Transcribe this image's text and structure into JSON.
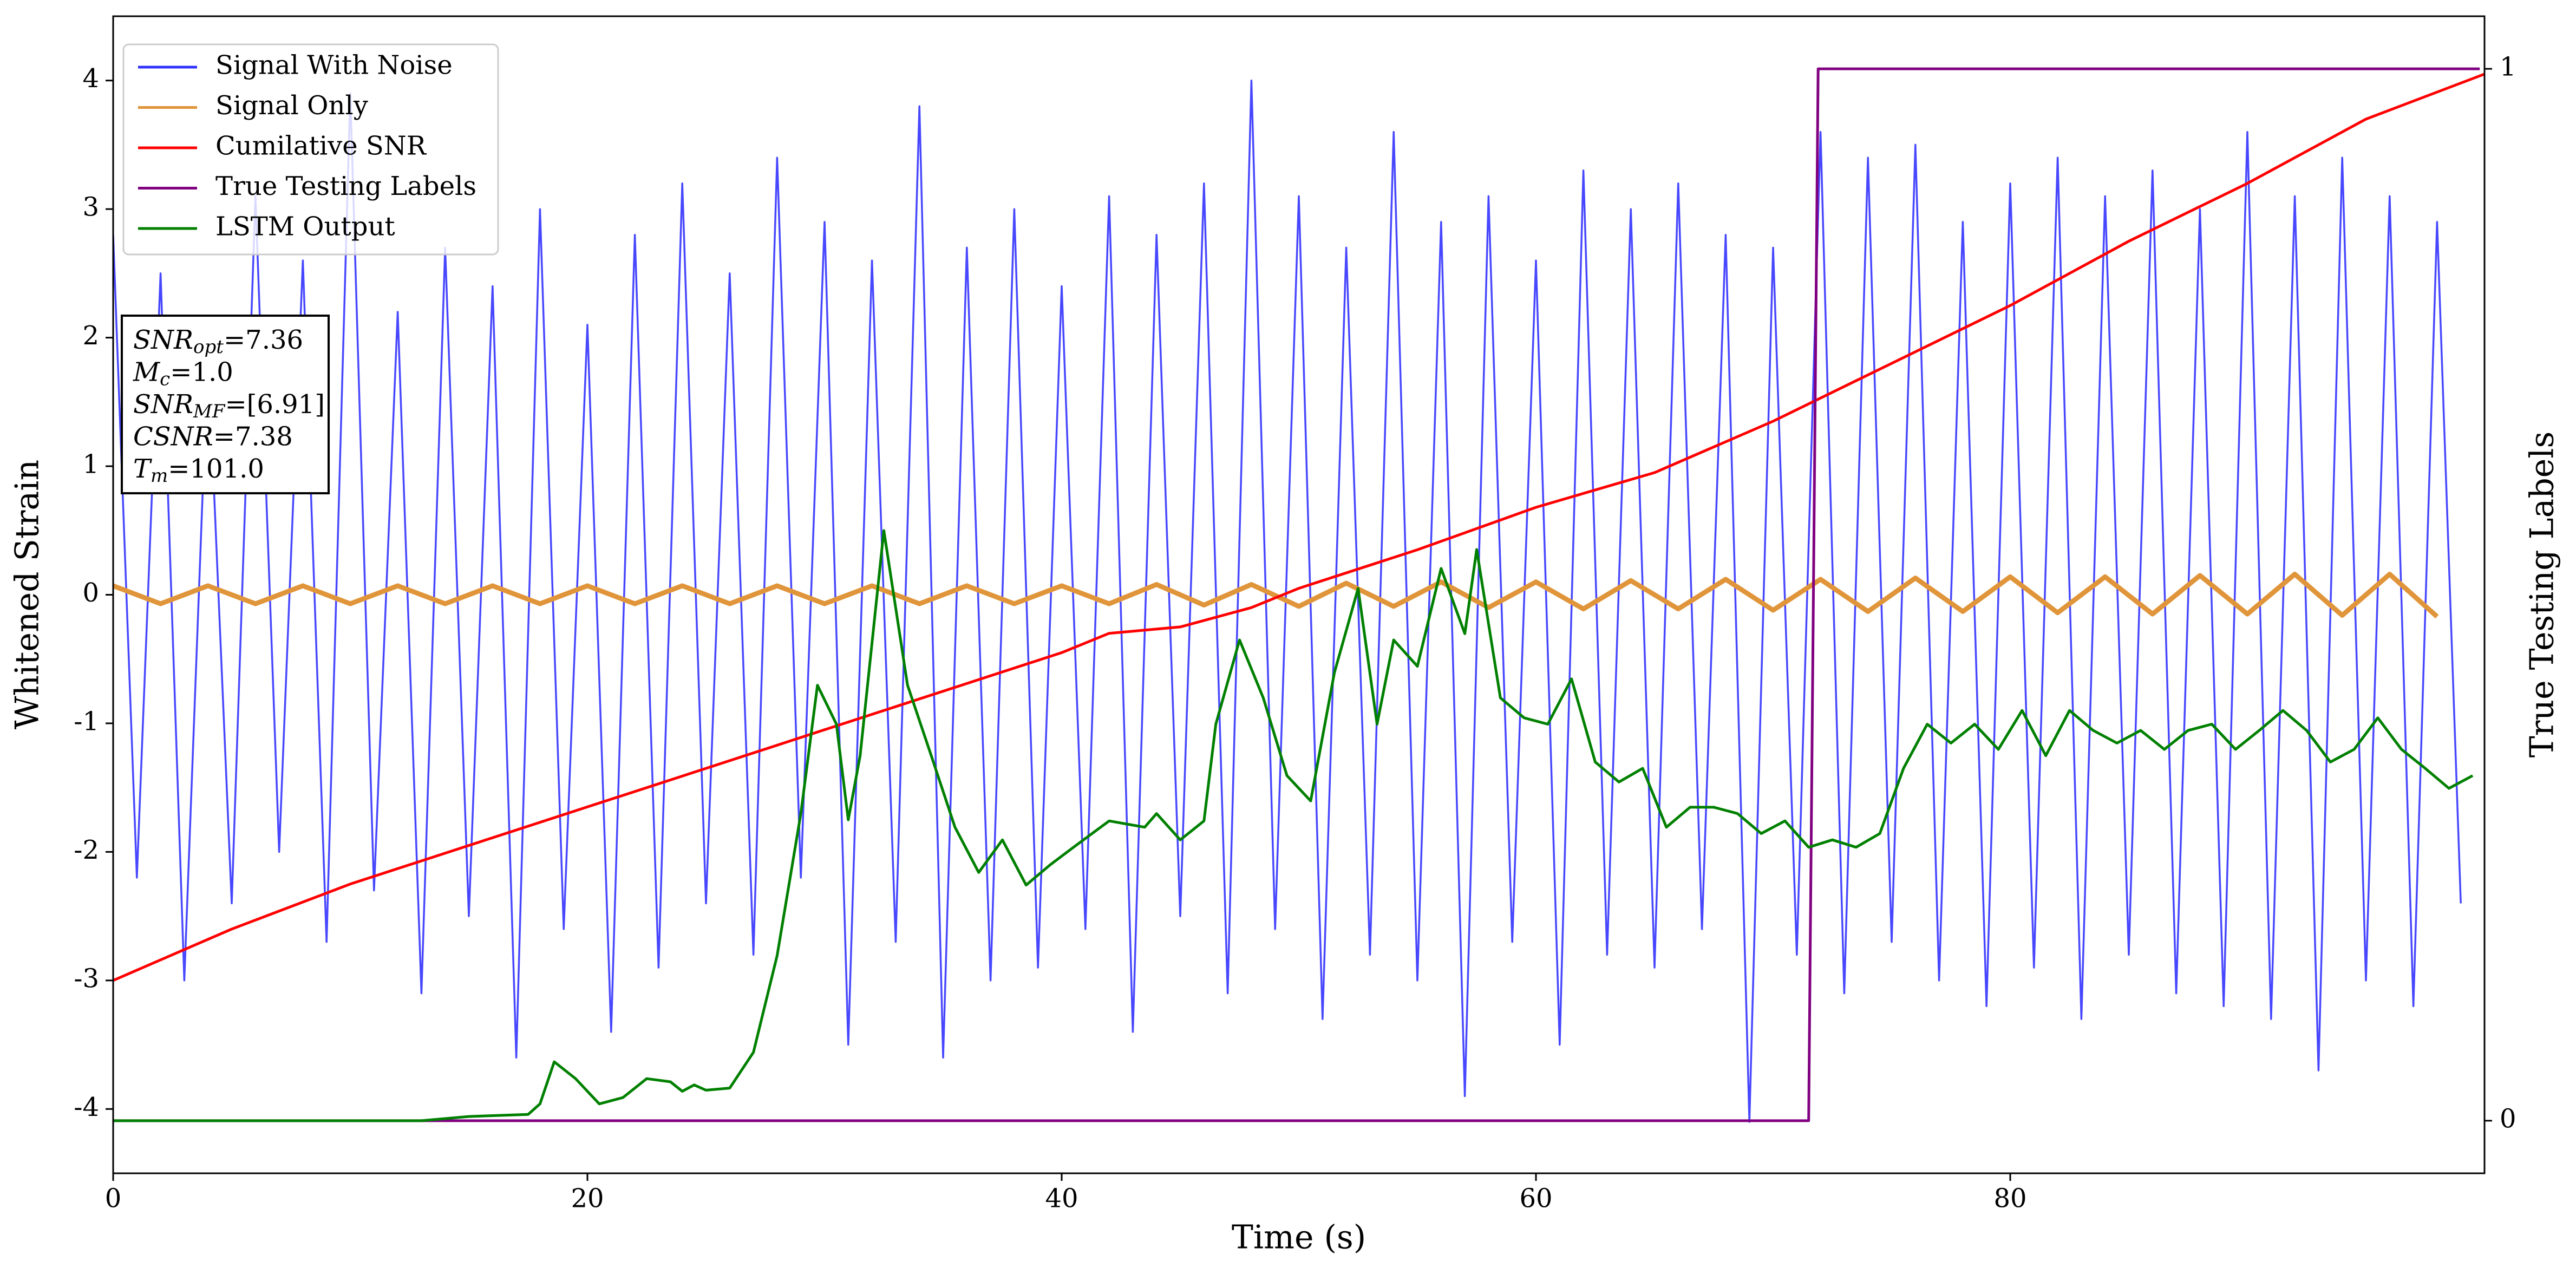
{
  "chart_data": {
    "type": "line",
    "xlabel": "Time (s)",
    "ylabel": "Whitened Strain",
    "y2label": "True Testing Labels",
    "xlim": [
      0,
      100
    ],
    "xticks": [
      0,
      20,
      40,
      60,
      80
    ],
    "ylim": [
      -4.5,
      4.5
    ],
    "yticks": [
      -4,
      -3,
      -2,
      -1,
      0,
      1,
      2,
      3,
      4
    ],
    "y2lim": [
      -0.05,
      1.05
    ],
    "y2ticks": [
      0,
      1
    ],
    "legend": "upper left",
    "annotation": [
      {
        "text": "SNR",
        "sub": "opt",
        "rest": "=7.36"
      },
      {
        "text": "M",
        "sub": "c",
        "rest": "=1.0"
      },
      {
        "text": "SNR",
        "sub": "MF",
        "rest": "=[6.91]"
      },
      {
        "text": "CSNR",
        "rest": "=7.38"
      },
      {
        "text": "T",
        "sub": "m",
        "rest": "=101.0"
      }
    ],
    "series": [
      {
        "name": "Signal With Noise",
        "color": "#3333ff",
        "x": [
          0,
          1,
          2,
          3,
          4,
          5,
          6,
          7,
          8,
          9,
          10,
          11,
          12,
          13,
          14,
          15,
          16,
          17,
          18,
          19,
          20,
          21,
          22,
          23,
          24,
          25,
          26,
          27,
          28,
          29,
          30,
          31,
          32,
          33,
          34,
          35,
          36,
          37,
          38,
          39,
          40,
          41,
          42,
          43,
          44,
          45,
          46,
          47,
          48,
          49,
          50,
          51,
          52,
          53,
          54,
          55,
          56,
          57,
          58,
          59,
          60,
          61,
          62,
          63,
          64,
          65,
          66,
          67,
          68,
          69,
          70,
          71,
          72,
          73,
          74,
          75,
          76,
          77,
          78,
          79,
          80,
          81,
          82,
          83,
          84,
          85,
          86,
          87,
          88,
          89,
          90,
          91,
          92,
          93,
          94,
          95,
          96,
          97,
          98,
          99
        ],
        "values": [
          2.8,
          -2.2,
          2.5,
          -3.0,
          1.9,
          -2.4,
          3.1,
          -2.0,
          2.6,
          -2.7,
          3.9,
          -2.3,
          2.2,
          -3.1,
          2.7,
          -2.5,
          2.4,
          -3.6,
          3.0,
          -2.6,
          2.1,
          -3.4,
          2.8,
          -2.9,
          3.2,
          -2.4,
          2.5,
          -2.8,
          3.4,
          -2.2,
          2.9,
          -3.5,
          2.6,
          -2.7,
          3.8,
          -3.6,
          2.7,
          -3.0,
          3.0,
          -2.9,
          2.4,
          -2.6,
          3.1,
          -3.4,
          2.8,
          -2.5,
          3.2,
          -3.1,
          4.0,
          -2.6,
          3.1,
          -3.3,
          2.7,
          -2.8,
          3.6,
          -3.0,
          2.9,
          -3.9,
          3.1,
          -2.7,
          2.6,
          -3.5,
          3.3,
          -2.8,
          3.0,
          -2.9,
          3.2,
          -2.6,
          2.8,
          -4.1,
          2.7,
          -2.8,
          3.6,
          -3.1,
          3.4,
          -2.7,
          3.5,
          -3.0,
          2.9,
          -3.2,
          3.2,
          -2.9,
          3.4,
          -3.3,
          3.1,
          -2.8,
          3.3,
          -3.1,
          3.0,
          -3.2,
          3.6,
          -3.3,
          3.1,
          -3.7,
          3.4,
          -3.0,
          3.1,
          -3.2,
          2.9,
          -2.4
        ]
      },
      {
        "name": "Signal Only",
        "color": "#e0953a",
        "x": [
          0,
          2,
          4,
          6,
          8,
          10,
          12,
          14,
          16,
          18,
          20,
          22,
          24,
          26,
          28,
          30,
          32,
          34,
          36,
          38,
          40,
          42,
          44,
          46,
          48,
          50,
          52,
          54,
          56,
          58,
          60,
          62,
          64,
          66,
          68,
          70,
          72,
          74,
          76,
          78,
          80,
          82,
          84,
          86,
          88,
          90,
          92,
          94,
          96,
          98
        ],
        "values": [
          0.07,
          -0.07,
          0.07,
          -0.07,
          0.07,
          -0.07,
          0.07,
          -0.07,
          0.07,
          -0.07,
          0.07,
          -0.07,
          0.07,
          -0.07,
          0.07,
          -0.07,
          0.07,
          -0.07,
          0.07,
          -0.07,
          0.07,
          -0.07,
          0.08,
          -0.08,
          0.08,
          -0.09,
          0.09,
          -0.09,
          0.1,
          -0.1,
          0.1,
          -0.11,
          0.11,
          -0.11,
          0.12,
          -0.12,
          0.12,
          -0.13,
          0.13,
          -0.13,
          0.14,
          -0.14,
          0.14,
          -0.15,
          0.15,
          -0.15,
          0.16,
          -0.16,
          0.16,
          -0.17
        ]
      },
      {
        "name": "Cumilative SNR",
        "color": "#ff0000",
        "x": [
          0,
          5,
          10,
          15,
          20,
          25,
          30,
          35,
          40,
          42,
          45,
          48,
          50,
          55,
          60,
          65,
          70,
          75,
          80,
          85,
          90,
          92,
          95,
          100
        ],
        "values": [
          -3.0,
          -2.6,
          -2.25,
          -1.95,
          -1.65,
          -1.35,
          -1.05,
          -0.75,
          -0.45,
          -0.3,
          -0.25,
          -0.1,
          0.05,
          0.35,
          0.68,
          0.95,
          1.35,
          1.8,
          2.25,
          2.75,
          3.2,
          3.4,
          3.7,
          4.05
        ]
      },
      {
        "name": "True Testing Labels",
        "color": "#800080",
        "axis": "y2",
        "x": [
          0,
          71.5,
          71.9,
          99.8
        ],
        "values": [
          0,
          0,
          1,
          1
        ]
      },
      {
        "name": "LSTM Output",
        "color": "#008000",
        "axis": "y2",
        "x": [
          0,
          13,
          15,
          17.5,
          18,
          18.6,
          19.5,
          20.5,
          21.5,
          22.5,
          23.5,
          24,
          24.5,
          25,
          26,
          27,
          28,
          29,
          29.7,
          30.5,
          31,
          31.5,
          32.5,
          33.5,
          34.5,
          35.5,
          36.5,
          37.5,
          38.5,
          39.5,
          40.5,
          42,
          43.5,
          44,
          45,
          46,
          46.5,
          47.5,
          48.5,
          49.5,
          50.5,
          51.5,
          52.5,
          53.3,
          54,
          55,
          56,
          57,
          57.5,
          58.5,
          59.5,
          60.5,
          61.5,
          62.5,
          63.5,
          64.5,
          65.5,
          66.5,
          67.5,
          68.5,
          69.5,
          70.5,
          71.5,
          72.5,
          73.5,
          74.5,
          75.5,
          76.5,
          77.5,
          78.5,
          79.5,
          80.5,
          81.5,
          82.5,
          83.5,
          84.5,
          85.5,
          86.5,
          87.5,
          88.5,
          89.5,
          90.5,
          91.5,
          92.5,
          93.5,
          94.5,
          95.5,
          96.5,
          97.5,
          98.5,
          99.5
        ],
        "values": [
          0,
          0,
          0.004,
          0.006,
          0.016,
          0.056,
          0.04,
          0.016,
          0.022,
          0.04,
          0.037,
          0.028,
          0.034,
          0.029,
          0.031,
          0.065,
          0.157,
          0.292,
          0.414,
          0.377,
          0.286,
          0.347,
          0.561,
          0.414,
          0.347,
          0.279,
          0.236,
          0.267,
          0.224,
          0.243,
          0.26,
          0.285,
          0.279,
          0.292,
          0.267,
          0.285,
          0.377,
          0.457,
          0.402,
          0.328,
          0.304,
          0.426,
          0.506,
          0.377,
          0.457,
          0.432,
          0.525,
          0.463,
          0.543,
          0.402,
          0.383,
          0.377,
          0.42,
          0.341,
          0.322,
          0.335,
          0.279,
          0.298,
          0.298,
          0.292,
          0.273,
          0.285,
          0.26,
          0.267,
          0.26,
          0.273,
          0.335,
          0.377,
          0.359,
          0.377,
          0.353,
          0.39,
          0.347,
          0.39,
          0.371,
          0.359,
          0.371,
          0.353,
          0.371,
          0.377,
          0.353,
          0.371,
          0.39,
          0.371,
          0.341,
          0.353,
          0.383,
          0.353,
          0.335,
          0.316,
          0.328
        ]
      }
    ]
  }
}
